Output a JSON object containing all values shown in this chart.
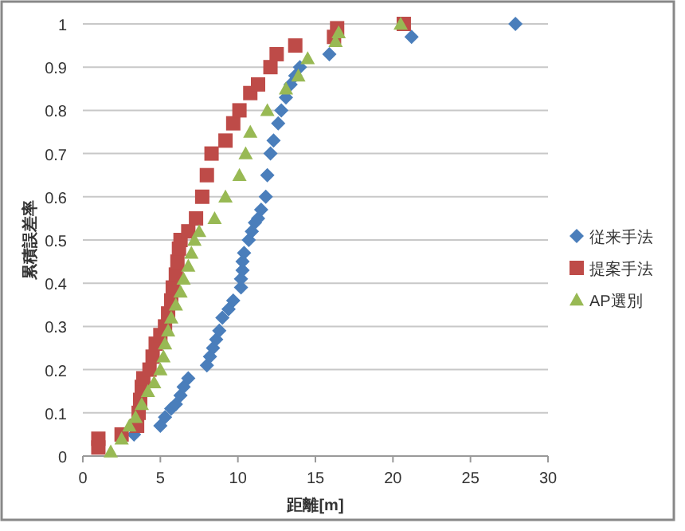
{
  "chart_data": {
    "type": "scatter",
    "xlabel": "距離[m]",
    "ylabel": "累積誤差率",
    "xlim": [
      0,
      30
    ],
    "xticks": [
      0,
      5,
      10,
      15,
      20,
      25,
      30
    ],
    "ylim": [
      0,
      1
    ],
    "yticks": [
      0,
      0.1,
      0.2,
      0.3,
      0.4,
      0.5,
      0.6,
      0.7,
      0.8,
      0.9,
      1
    ],
    "grid": "y",
    "legend": "right",
    "series": [
      {
        "name": "従来手法",
        "color": "#4a7ebb",
        "marker": "diamond",
        "x": [
          3.3,
          5,
          5.3,
          5.7,
          6,
          6.3,
          6.5,
          6.8,
          8,
          8.2,
          8.4,
          8.6,
          8.8,
          9,
          9.4,
          9.7,
          10.2,
          10.2,
          10.3,
          10.3,
          10.4,
          10.7,
          10.9,
          11.1,
          11.3,
          11.5,
          11.8,
          11.9,
          12.1,
          12.3,
          12.6,
          12.8,
          13.1,
          13.4,
          13.7,
          14,
          15.9,
          21.2,
          27.9
        ],
        "values": [
          0.05,
          0.07,
          0.09,
          0.11,
          0.12,
          0.14,
          0.16,
          0.18,
          0.21,
          0.23,
          0.25,
          0.27,
          0.29,
          0.32,
          0.34,
          0.36,
          0.39,
          0.41,
          0.43,
          0.45,
          0.47,
          0.5,
          0.52,
          0.54,
          0.55,
          0.57,
          0.6,
          0.65,
          0.7,
          0.73,
          0.77,
          0.8,
          0.83,
          0.86,
          0.88,
          0.9,
          0.93,
          0.97,
          1
        ]
      },
      {
        "name": "提案手法",
        "color": "#be4b48",
        "marker": "square",
        "x": [
          1,
          1,
          2.5,
          3.5,
          3.6,
          3.7,
          3.8,
          3.9,
          4.3,
          4.5,
          4.7,
          5,
          5.3,
          5.5,
          5.7,
          5.8,
          6,
          6.1,
          6.2,
          6.3,
          6.8,
          7.3,
          7.7,
          8,
          8.3,
          9.2,
          9.7,
          10.1,
          10.8,
          11.3,
          12.1,
          12.5,
          13.7,
          16.2,
          16.4,
          20.7
        ],
        "values": [
          0.02,
          0.04,
          0.05,
          0.07,
          0.1,
          0.13,
          0.16,
          0.18,
          0.2,
          0.23,
          0.26,
          0.28,
          0.3,
          0.33,
          0.36,
          0.39,
          0.42,
          0.45,
          0.48,
          0.5,
          0.52,
          0.55,
          0.6,
          0.65,
          0.7,
          0.73,
          0.77,
          0.8,
          0.84,
          0.86,
          0.9,
          0.93,
          0.95,
          0.97,
          0.99,
          1
        ]
      },
      {
        "name": "AP選別",
        "color": "#98b954",
        "marker": "triangle",
        "x": [
          1.8,
          2.5,
          3,
          3.4,
          3.8,
          4.2,
          4.6,
          5,
          5.2,
          5.3,
          5.5,
          5.7,
          6,
          6.3,
          6.5,
          6.8,
          7,
          7.2,
          7.5,
          8.5,
          9.2,
          10.1,
          10.5,
          10.8,
          11.9,
          13.1,
          13.9,
          14.5,
          16.3,
          16.5,
          20.5
        ],
        "values": [
          0.01,
          0.04,
          0.07,
          0.09,
          0.12,
          0.15,
          0.17,
          0.2,
          0.23,
          0.26,
          0.29,
          0.32,
          0.35,
          0.38,
          0.41,
          0.44,
          0.47,
          0.5,
          0.52,
          0.55,
          0.6,
          0.65,
          0.7,
          0.75,
          0.8,
          0.85,
          0.88,
          0.92,
          0.96,
          0.98,
          1
        ]
      }
    ]
  }
}
